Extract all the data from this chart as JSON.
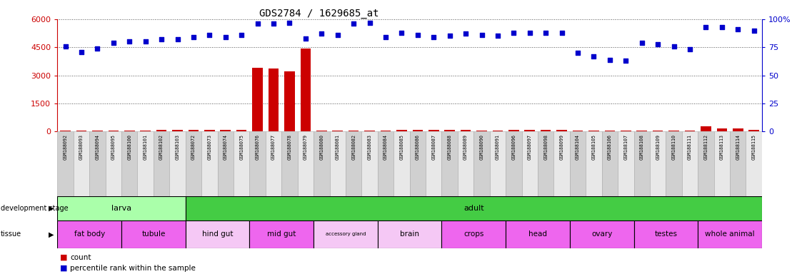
{
  "title": "GDS2784 / 1629685_at",
  "samples": [
    "GSM188092",
    "GSM188093",
    "GSM188094",
    "GSM188095",
    "GSM188100",
    "GSM188101",
    "GSM188102",
    "GSM188103",
    "GSM188072",
    "GSM188073",
    "GSM188074",
    "GSM188075",
    "GSM188076",
    "GSM188077",
    "GSM188078",
    "GSM188079",
    "GSM188080",
    "GSM188081",
    "GSM188082",
    "GSM188083",
    "GSM188084",
    "GSM188085",
    "GSM188086",
    "GSM188087",
    "GSM188088",
    "GSM188089",
    "GSM188090",
    "GSM188091",
    "GSM188096",
    "GSM188097",
    "GSM188098",
    "GSM188099",
    "GSM188104",
    "GSM188105",
    "GSM188106",
    "GSM188107",
    "GSM188108",
    "GSM188109",
    "GSM188110",
    "GSM188111",
    "GSM188112",
    "GSM188113",
    "GSM188114",
    "GSM188115"
  ],
  "counts": [
    55,
    45,
    45,
    50,
    55,
    55,
    75,
    85,
    90,
    85,
    75,
    90,
    3400,
    3350,
    3200,
    4430,
    65,
    65,
    55,
    55,
    65,
    75,
    75,
    85,
    90,
    75,
    55,
    55,
    85,
    90,
    90,
    85,
    65,
    55,
    55,
    55,
    55,
    55,
    55,
    55,
    260,
    180,
    180,
    90
  ],
  "percentile_ranks": [
    76,
    71,
    74,
    79,
    80,
    80,
    82,
    82,
    84,
    86,
    84,
    86,
    96,
    96,
    97,
    83,
    87,
    86,
    96,
    97,
    84,
    88,
    86,
    84,
    85,
    87,
    86,
    85,
    88,
    88,
    88,
    88,
    70,
    67,
    64,
    63,
    79,
    78,
    76,
    73,
    93,
    93,
    91,
    90
  ],
  "ylim_left": [
    0,
    6000
  ],
  "ylim_right": [
    0,
    100
  ],
  "yticks_left": [
    0,
    1500,
    3000,
    4500,
    6000
  ],
  "yticks_right": [
    0,
    25,
    50,
    75,
    100
  ],
  "development_stages": [
    {
      "label": "larva",
      "start": 0,
      "end": 8,
      "color": "#aaffaa"
    },
    {
      "label": "adult",
      "start": 8,
      "end": 44,
      "color": "#44cc44"
    }
  ],
  "tissues": [
    {
      "label": "fat body",
      "start": 0,
      "end": 4,
      "color": "#ee66ee"
    },
    {
      "label": "tubule",
      "start": 4,
      "end": 8,
      "color": "#ee66ee"
    },
    {
      "label": "hind gut",
      "start": 8,
      "end": 12,
      "color": "#f5c8f5"
    },
    {
      "label": "mid gut",
      "start": 12,
      "end": 16,
      "color": "#ee66ee"
    },
    {
      "label": "accessory gland",
      "start": 16,
      "end": 20,
      "color": "#f5c8f5"
    },
    {
      "label": "brain",
      "start": 20,
      "end": 24,
      "color": "#f5c8f5"
    },
    {
      "label": "crops",
      "start": 24,
      "end": 28,
      "color": "#ee66ee"
    },
    {
      "label": "head",
      "start": 28,
      "end": 32,
      "color": "#ee66ee"
    },
    {
      "label": "ovary",
      "start": 32,
      "end": 36,
      "color": "#ee66ee"
    },
    {
      "label": "testes",
      "start": 36,
      "end": 40,
      "color": "#ee66ee"
    },
    {
      "label": "whole animal",
      "start": 40,
      "end": 44,
      "color": "#ee66ee"
    }
  ],
  "bar_color": "#CC0000",
  "dot_color": "#0000CC",
  "bg_color": "#ffffff",
  "left_axis_color": "#CC0000",
  "right_axis_color": "#0000CC",
  "grid_color": "#555555",
  "xticklabel_bg": "#D0D0D0",
  "xticklabel_bg2": "#E8E8E8"
}
